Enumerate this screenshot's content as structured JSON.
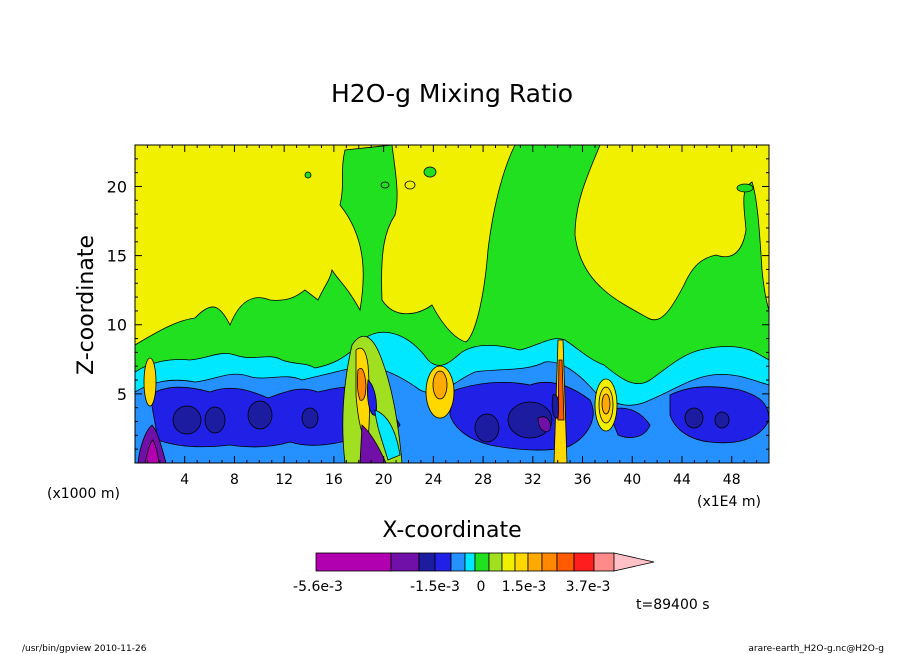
{
  "chart_data": {
    "type": "heatmap",
    "title": "H2O-g Mixing Ratio",
    "xlabel": "X-coordinate",
    "ylabel": "Z-coordinate",
    "x_unit_left": "(x1000 m)",
    "x_unit_right": "(x1E4 m)",
    "xlim": [
      0,
      51
    ],
    "ylim": [
      0,
      23
    ],
    "x_ticks": [
      4,
      8,
      12,
      16,
      20,
      24,
      28,
      32,
      36,
      40,
      44,
      48
    ],
    "y_ticks": [
      5,
      10,
      15,
      20
    ],
    "grid": false,
    "colorbar": {
      "colors": [
        "#b000b0",
        "#7010a8",
        "#1c1ca0",
        "#2020e6",
        "#2590ff",
        "#00e8ff",
        "#20e020",
        "#a0e020",
        "#f0f000",
        "#ffd800",
        "#ffaa00",
        "#ff8800",
        "#ff5a00",
        "#ff1e1e",
        "#ff8a8a",
        "#ffc0c8"
      ],
      "labels": [
        "-5.6e-3",
        "-1.5e-3",
        "0",
        "1.5e-3",
        "3.7e-3"
      ]
    },
    "time_label": "t=89400 s"
  },
  "footer": {
    "left": "/usr/bin/gpview  2010-11-26",
    "right": "arare-earth_H2O-g.nc@H2O-g"
  }
}
